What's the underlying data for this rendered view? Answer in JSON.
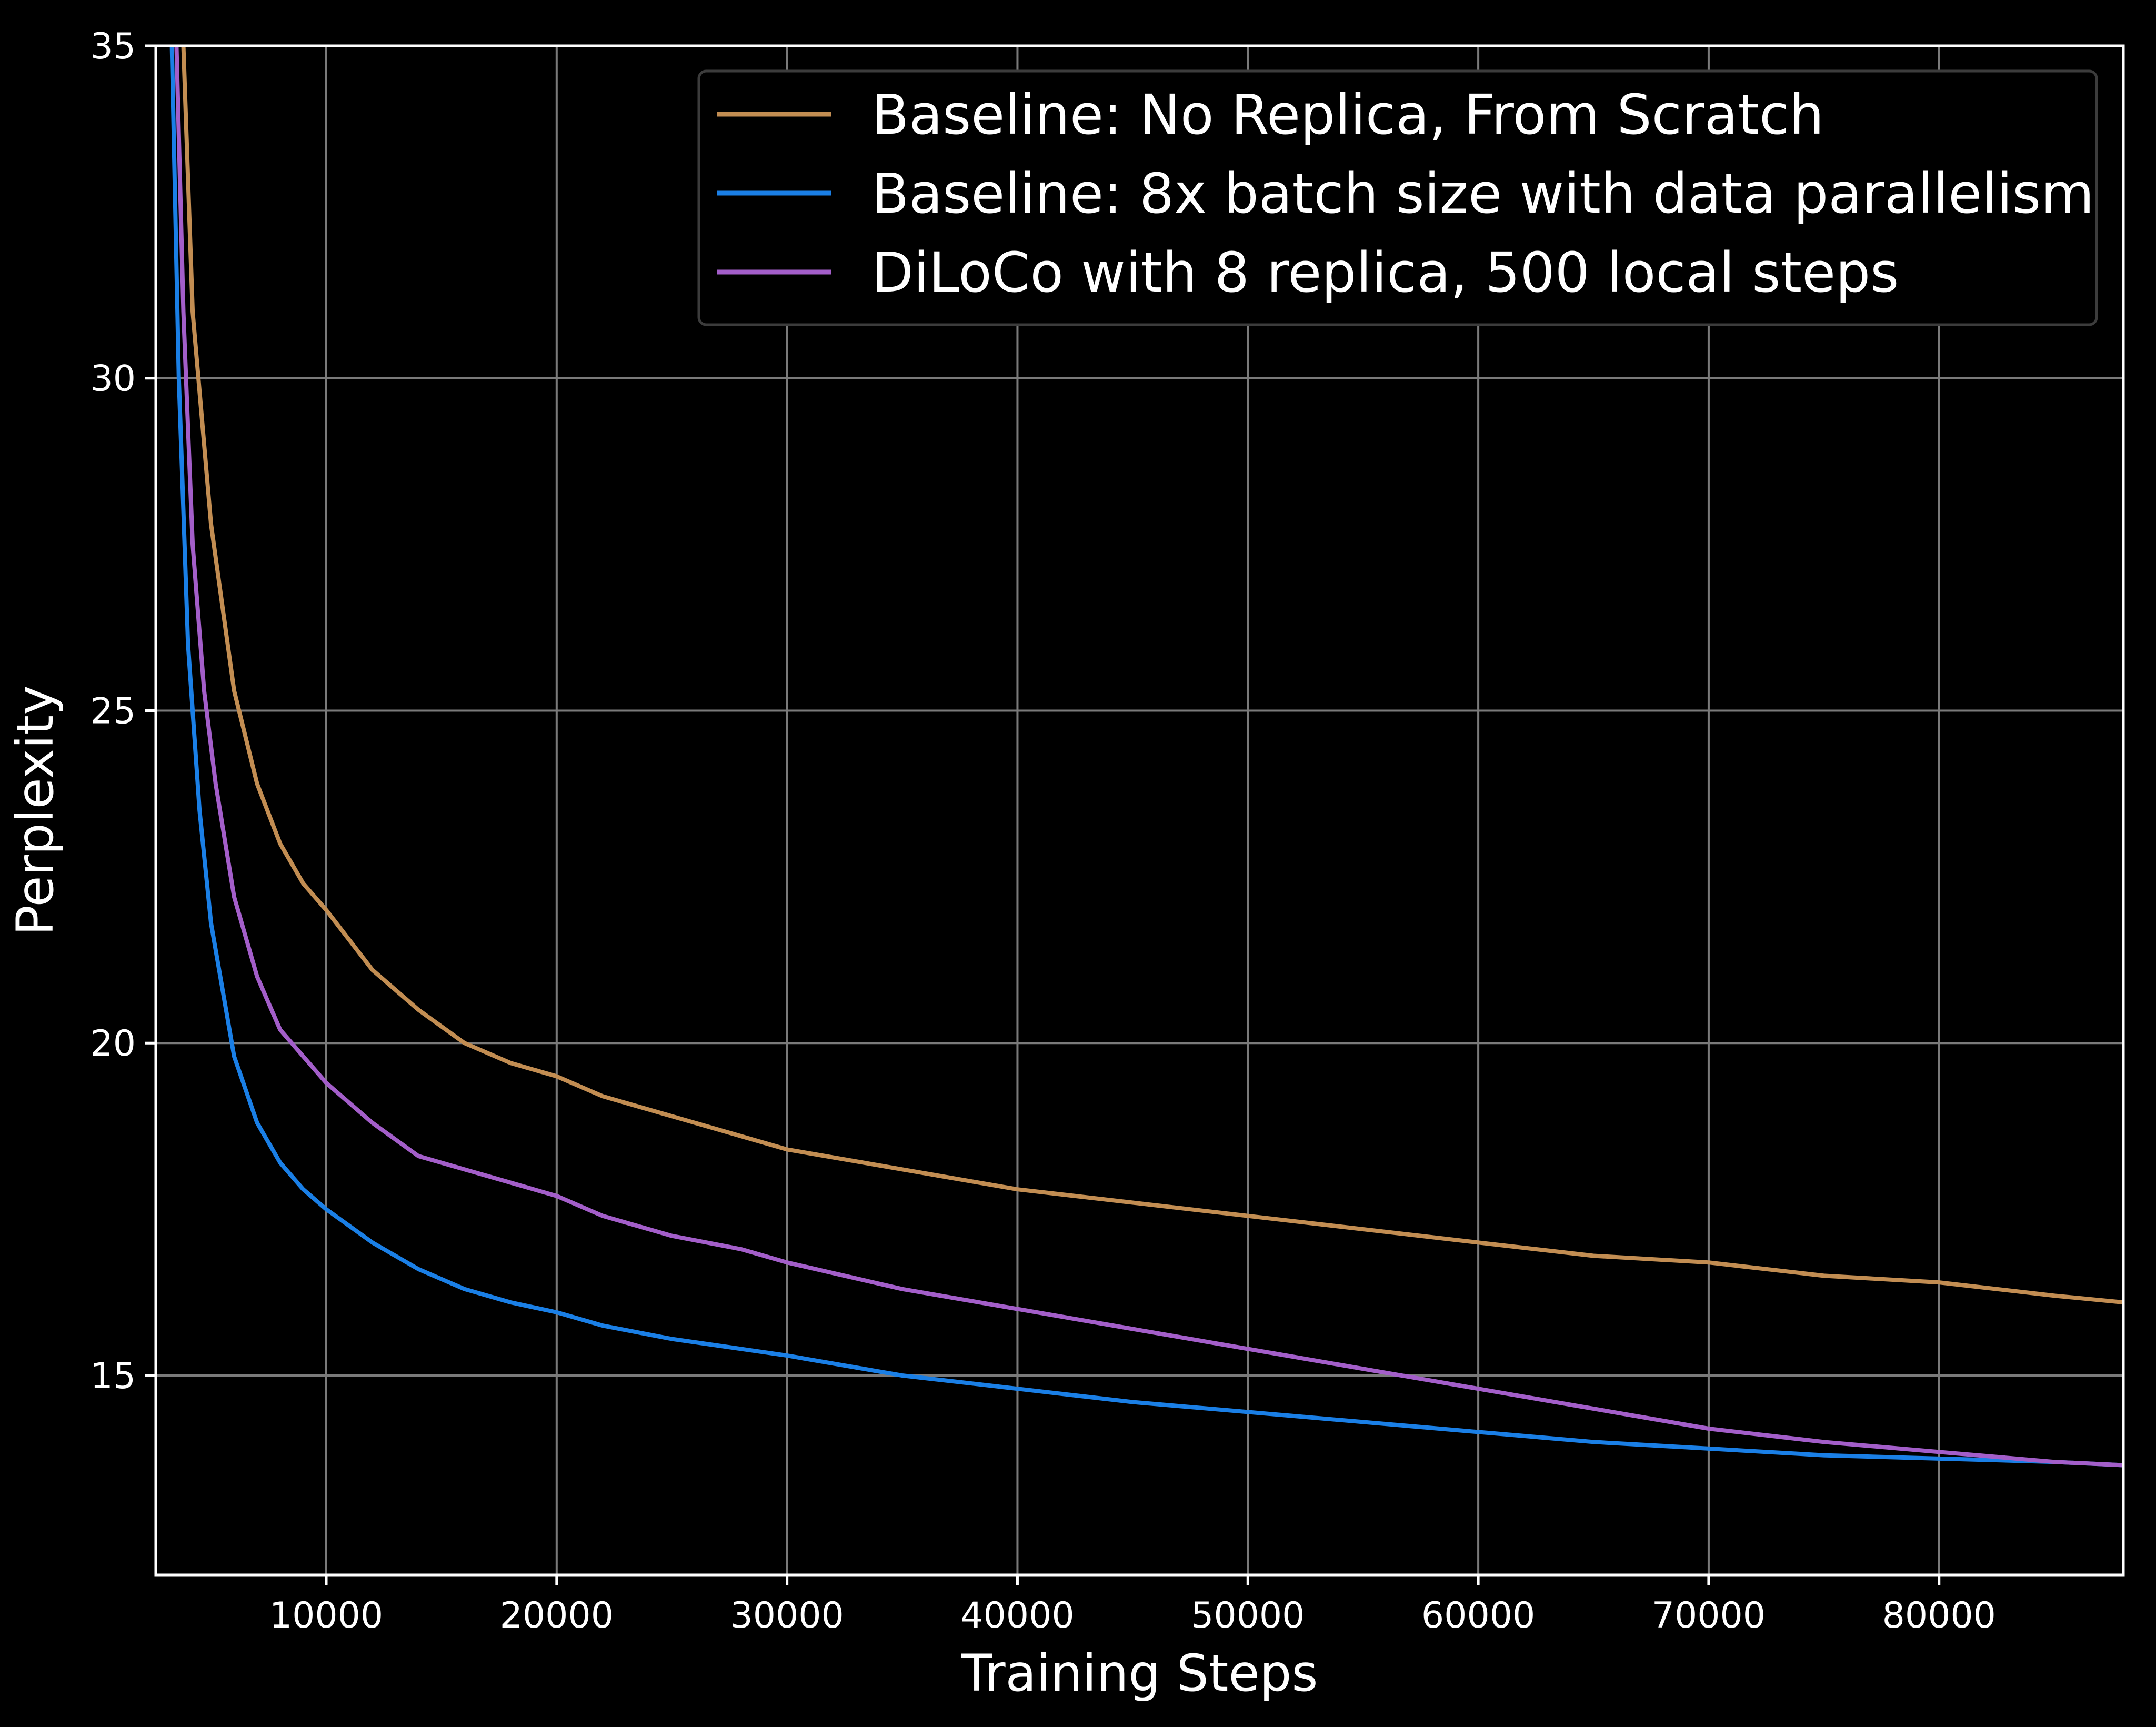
{
  "chart_data": {
    "type": "line",
    "xlabel": "Training Steps",
    "ylabel": "Perplexity",
    "xlim": [
      2600,
      88000
    ],
    "ylim": [
      12,
      35
    ],
    "xticks": [
      10000,
      20000,
      30000,
      40000,
      50000,
      60000,
      70000,
      80000
    ],
    "yticks": [
      15,
      20,
      25,
      30,
      35
    ],
    "grid": true,
    "legend_position": "upper-right",
    "background": "#000000",
    "series": [
      {
        "name": "Baseline: No Replica, From Scratch",
        "color": "#c28d52",
        "x": [
          3800,
          4200,
          5000,
          6000,
          7000,
          8000,
          9000,
          10000,
          12000,
          14000,
          16000,
          18000,
          20000,
          22000,
          25000,
          28000,
          30000,
          35000,
          40000,
          45000,
          50000,
          55000,
          60000,
          65000,
          70000,
          75000,
          80000,
          85000,
          88000
        ],
        "y": [
          35,
          31,
          27.8,
          25.3,
          23.9,
          23.0,
          22.4,
          22.0,
          21.1,
          20.5,
          20.0,
          19.7,
          19.5,
          19.2,
          18.9,
          18.6,
          18.4,
          18.1,
          17.8,
          17.6,
          17.4,
          17.2,
          17.0,
          16.8,
          16.7,
          16.5,
          16.4,
          16.2,
          16.1
        ]
      },
      {
        "name": "Baseline: 8x batch size with data parallelism",
        "color": "#1a7fe6",
        "x": [
          3300,
          3600,
          4000,
          4500,
          5000,
          6000,
          7000,
          8000,
          9000,
          10000,
          12000,
          14000,
          16000,
          18000,
          20000,
          22000,
          25000,
          28000,
          30000,
          35000,
          40000,
          45000,
          50000,
          55000,
          60000,
          65000,
          70000,
          75000,
          80000,
          85000,
          88000
        ],
        "y": [
          35,
          30,
          26,
          23.5,
          21.8,
          19.8,
          18.8,
          18.2,
          17.8,
          17.5,
          17.0,
          16.6,
          16.3,
          16.1,
          15.95,
          15.75,
          15.55,
          15.4,
          15.3,
          15.0,
          14.8,
          14.6,
          14.45,
          14.3,
          14.15,
          14.0,
          13.9,
          13.8,
          13.75,
          13.7,
          13.65
        ]
      },
      {
        "name": "DiLoCo with 8 replica, 500 local steps",
        "color": "#a35ec9",
        "x": [
          3500,
          3800,
          4200,
          4700,
          5200,
          6000,
          7000,
          8000,
          9000,
          10000,
          12000,
          14000,
          16000,
          18000,
          20000,
          22000,
          25000,
          28000,
          30000,
          35000,
          40000,
          45000,
          50000,
          55000,
          60000,
          65000,
          70000,
          75000,
          80000,
          85000,
          88000
        ],
        "y": [
          35,
          31,
          27.5,
          25.3,
          23.9,
          22.2,
          21.0,
          20.2,
          19.8,
          19.4,
          18.8,
          18.3,
          18.1,
          17.9,
          17.7,
          17.4,
          17.1,
          16.9,
          16.7,
          16.3,
          16.0,
          15.7,
          15.4,
          15.1,
          14.8,
          14.5,
          14.2,
          14.0,
          13.85,
          13.7,
          13.65
        ]
      }
    ]
  }
}
